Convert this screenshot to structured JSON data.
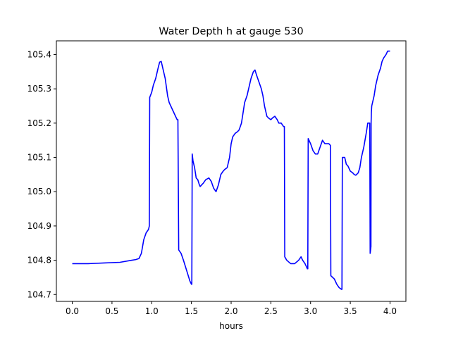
{
  "chart_data": {
    "type": "line",
    "title": "Water Depth h at gauge 530",
    "xlabel": "hours",
    "ylabel": "",
    "xlim": [
      -0.2,
      4.2
    ],
    "ylim": [
      104.68,
      105.44
    ],
    "xticks": [
      0.0,
      0.5,
      1.0,
      1.5,
      2.0,
      2.5,
      3.0,
      3.5,
      4.0
    ],
    "xtick_labels": [
      "0.0",
      "0.5",
      "1.0",
      "1.5",
      "2.0",
      "2.5",
      "3.0",
      "3.5",
      "4.0"
    ],
    "yticks": [
      104.7,
      104.8,
      104.9,
      105.0,
      105.1,
      105.2,
      105.3,
      105.4
    ],
    "ytick_labels": [
      "104.7",
      "104.8",
      "104.9",
      "105.0",
      "105.1",
      "105.2",
      "105.3",
      "105.4"
    ],
    "grid": false,
    "line_color": "#0000ff",
    "series": [
      {
        "x": [
          0.0,
          0.2,
          0.4,
          0.6,
          0.75,
          0.8,
          0.84,
          0.87,
          0.9,
          0.93,
          0.96,
          0.97,
          0.975,
          1.0,
          1.02,
          1.05,
          1.08,
          1.1,
          1.12,
          1.14,
          1.17,
          1.2,
          1.22,
          1.26,
          1.3,
          1.32,
          1.33,
          1.34,
          1.37,
          1.4,
          1.44,
          1.48,
          1.5,
          1.505,
          1.51,
          1.52,
          1.54,
          1.56,
          1.58,
          1.6,
          1.61,
          1.63,
          1.65,
          1.68,
          1.72,
          1.75,
          1.78,
          1.81,
          1.84,
          1.87,
          1.9,
          1.92,
          1.95,
          1.98,
          2.0,
          2.02,
          2.05,
          2.08,
          2.1,
          2.13,
          2.15,
          2.17,
          2.2,
          2.22,
          2.25,
          2.28,
          2.3,
          2.32,
          2.35,
          2.38,
          2.4,
          2.42,
          2.45,
          2.47,
          2.5,
          2.52,
          2.55,
          2.58,
          2.6,
          2.63,
          2.66,
          2.67,
          2.675,
          2.7,
          2.75,
          2.8,
          2.85,
          2.88,
          2.9,
          2.93,
          2.96,
          2.965,
          2.97,
          3.0,
          3.03,
          3.06,
          3.09,
          3.12,
          3.15,
          3.18,
          3.2,
          3.23,
          3.25,
          3.255,
          3.3,
          3.33,
          3.36,
          3.39,
          3.395,
          3.4,
          3.43,
          3.45,
          3.47,
          3.5,
          3.53,
          3.55,
          3.57,
          3.6,
          3.62,
          3.64,
          3.67,
          3.7,
          3.72,
          3.745,
          3.75,
          3.755,
          3.76,
          3.762,
          3.765,
          3.77,
          3.8,
          3.82,
          3.85,
          3.88,
          3.9,
          3.92,
          3.95,
          3.97,
          4.0
        ],
        "y": [
          104.79,
          104.79,
          104.792,
          104.794,
          104.8,
          104.802,
          104.805,
          104.82,
          104.86,
          104.88,
          104.89,
          104.9,
          105.275,
          105.29,
          105.31,
          105.33,
          105.36,
          105.378,
          105.38,
          105.36,
          105.33,
          105.28,
          105.26,
          105.24,
          105.22,
          105.21,
          105.21,
          104.83,
          104.82,
          104.8,
          104.77,
          104.74,
          104.73,
          104.73,
          105.11,
          105.09,
          105.07,
          105.04,
          105.035,
          105.02,
          105.015,
          105.02,
          105.025,
          105.035,
          105.04,
          105.03,
          105.01,
          105.0,
          105.02,
          105.05,
          105.06,
          105.065,
          105.07,
          105.1,
          105.14,
          105.16,
          105.17,
          105.175,
          105.18,
          105.2,
          105.23,
          105.26,
          105.28,
          105.3,
          105.33,
          105.35,
          105.355,
          105.34,
          105.32,
          105.3,
          105.28,
          105.25,
          105.22,
          105.215,
          105.21,
          105.215,
          105.22,
          105.21,
          105.2,
          105.2,
          105.19,
          105.19,
          104.81,
          104.8,
          104.79,
          104.79,
          104.8,
          104.81,
          104.8,
          104.79,
          104.775,
          104.775,
          105.155,
          105.14,
          105.12,
          105.11,
          105.11,
          105.13,
          105.15,
          105.14,
          105.14,
          105.14,
          105.135,
          104.755,
          104.745,
          104.73,
          104.72,
          104.715,
          104.715,
          105.1,
          105.1,
          105.08,
          105.075,
          105.06,
          105.055,
          105.05,
          105.048,
          105.055,
          105.07,
          105.1,
          105.13,
          105.17,
          105.2,
          105.2,
          104.82,
          104.83,
          104.84,
          105.2,
          105.23,
          105.25,
          105.28,
          105.31,
          105.34,
          105.36,
          105.38,
          105.39,
          105.4,
          105.41,
          105.41
        ]
      }
    ]
  }
}
